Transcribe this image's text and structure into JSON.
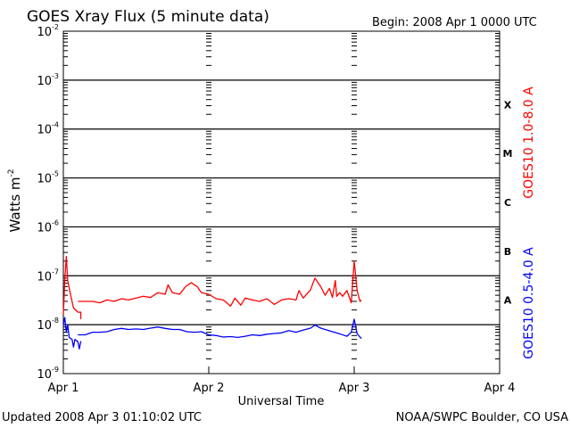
{
  "title": "GOES Xray Flux (5 minute data)",
  "begin": "Begin:  2008 Apr 1 0000 UTC",
  "ylabel": "Watts m",
  "ylabel_exp": "-2",
  "xlabel": "Universal Time",
  "updated": "Updated 2008 Apr  3 01:10:02 UTC",
  "credit": "NOAA/SWPC Boulder, CO USA",
  "chart_data": {
    "type": "line",
    "title": "GOES Xray Flux (5 minute data)",
    "xlabel": "Universal Time",
    "ylabel": "Watts m-2",
    "y_scale": "log",
    "ylim": [
      1e-09,
      0.01
    ],
    "y_ticks": [
      {
        "base": "10",
        "exp": "-2",
        "value": 0.01
      },
      {
        "base": "10",
        "exp": "-3",
        "value": 0.001
      },
      {
        "base": "10",
        "exp": "-4",
        "value": 0.0001
      },
      {
        "base": "10",
        "exp": "-5",
        "value": 1e-05
      },
      {
        "base": "10",
        "exp": "-6",
        "value": 1e-06
      },
      {
        "base": "10",
        "exp": "-7",
        "value": 1e-07
      },
      {
        "base": "10",
        "exp": "-8",
        "value": 1e-08
      },
      {
        "base": "10",
        "exp": "-9",
        "value": 1e-09
      }
    ],
    "xlim": [
      0,
      3
    ],
    "x_ticks": [
      {
        "label": "Apr 1",
        "value": 0
      },
      {
        "label": "Apr 2",
        "value": 1
      },
      {
        "label": "Apr 3",
        "value": 2
      },
      {
        "label": "Apr 4",
        "value": 3
      }
    ],
    "flare_classes": [
      {
        "label": "X",
        "value": 0.0001
      },
      {
        "label": "M",
        "value": 1e-05
      },
      {
        "label": "C",
        "value": 1e-06
      },
      {
        "label": "B",
        "value": 1e-07
      },
      {
        "label": "A",
        "value": 1e-08
      }
    ],
    "grid": true,
    "series": [
      {
        "name": "GOES10 1.0-8.0 A",
        "color": "#ff0000",
        "segments": [
          [
            [
              0.0,
              1.6e-08
            ],
            [
              0.01,
              8e-08
            ],
            [
              0.02,
              2.5e-07
            ],
            [
              0.03,
              8e-08
            ],
            [
              0.05,
              4e-08
            ],
            [
              0.07,
              2.2e-08
            ],
            [
              0.1,
              1.8e-08
            ],
            [
              0.12,
              1.8e-08
            ],
            [
              0.12,
              1.3e-08
            ]
          ],
          [
            [
              0.1,
              3e-08
            ],
            [
              0.18,
              3e-08
            ],
            [
              0.2,
              3e-08
            ],
            [
              0.25,
              2.8e-08
            ],
            [
              0.3,
              3.2e-08
            ],
            [
              0.35,
              3e-08
            ],
            [
              0.4,
              3.4e-08
            ],
            [
              0.45,
              3.2e-08
            ],
            [
              0.5,
              3.5e-08
            ],
            [
              0.55,
              3.8e-08
            ],
            [
              0.6,
              3.6e-08
            ],
            [
              0.65,
              4.5e-08
            ],
            [
              0.7,
              4.2e-08
            ],
            [
              0.72,
              6.5e-08
            ],
            [
              0.75,
              4.5e-08
            ],
            [
              0.8,
              4.2e-08
            ],
            [
              0.84,
              6e-08
            ],
            [
              0.88,
              7.2e-08
            ],
            [
              0.92,
              6e-08
            ],
            [
              0.95,
              4.5e-08
            ],
            [
              1.0,
              4.2e-08
            ],
            [
              1.05,
              3.4e-08
            ],
            [
              1.1,
              3.2e-08
            ],
            [
              1.15,
              2.4e-08
            ],
            [
              1.18,
              3.5e-08
            ],
            [
              1.22,
              2.5e-08
            ],
            [
              1.25,
              3.5e-08
            ],
            [
              1.3,
              3.2e-08
            ],
            [
              1.35,
              3e-08
            ],
            [
              1.4,
              3.4e-08
            ],
            [
              1.45,
              2.6e-08
            ],
            [
              1.5,
              3.2e-08
            ],
            [
              1.55,
              3.4e-08
            ],
            [
              1.6,
              3.2e-08
            ],
            [
              1.62,
              5e-08
            ],
            [
              1.65,
              3.5e-08
            ],
            [
              1.7,
              5.2e-08
            ],
            [
              1.73,
              9e-08
            ],
            [
              1.77,
              6e-08
            ],
            [
              1.8,
              4e-08
            ],
            [
              1.83,
              5.5e-08
            ],
            [
              1.85,
              3.6e-08
            ],
            [
              1.87,
              8e-08
            ],
            [
              1.88,
              3.8e-08
            ],
            [
              1.9,
              4.5e-08
            ],
            [
              1.92,
              3.8e-08
            ],
            [
              1.95,
              5e-08
            ],
            [
              1.98,
              2.8e-08
            ],
            [
              2.0,
              2e-07
            ],
            [
              2.02,
              5e-08
            ],
            [
              2.04,
              3e-08
            ],
            [
              2.05,
              3.2e-08
            ]
          ]
        ]
      },
      {
        "name": "GOES10 0.5-4.0 A",
        "color": "#0000ff",
        "segments": [
          [
            [
              0.0,
              1e-08
            ],
            [
              0.01,
              1.4e-08
            ],
            [
              0.02,
              7e-09
            ],
            [
              0.03,
              1e-08
            ],
            [
              0.04,
              5.5e-09
            ],
            [
              0.06,
              5e-09
            ],
            [
              0.07,
              3.5e-09
            ],
            [
              0.08,
              5e-09
            ],
            [
              0.1,
              4.5e-09
            ],
            [
              0.11,
              3.2e-09
            ],
            [
              0.12,
              4.6e-09
            ]
          ],
          [
            [
              0.1,
              6.2e-09
            ],
            [
              0.15,
              6.2e-09
            ],
            [
              0.2,
              7e-09
            ],
            [
              0.25,
              7e-09
            ],
            [
              0.3,
              7.2e-09
            ],
            [
              0.35,
              8e-09
            ],
            [
              0.4,
              8.4e-09
            ],
            [
              0.45,
              8e-09
            ],
            [
              0.5,
              8.2e-09
            ],
            [
              0.55,
              8e-09
            ],
            [
              0.6,
              8.5e-09
            ],
            [
              0.65,
              9e-09
            ],
            [
              0.7,
              8.4e-09
            ],
            [
              0.75,
              8e-09
            ],
            [
              0.8,
              8e-09
            ],
            [
              0.85,
              7.2e-09
            ],
            [
              0.9,
              7e-09
            ],
            [
              0.95,
              7.2e-09
            ],
            [
              1.0,
              6.2e-09
            ],
            [
              1.05,
              6e-09
            ],
            [
              1.1,
              5.6e-09
            ],
            [
              1.15,
              5.7e-09
            ],
            [
              1.2,
              5.5e-09
            ],
            [
              1.25,
              5.8e-09
            ],
            [
              1.3,
              6.2e-09
            ],
            [
              1.35,
              6e-09
            ],
            [
              1.4,
              6.4e-09
            ],
            [
              1.45,
              6.6e-09
            ],
            [
              1.5,
              6.8e-09
            ],
            [
              1.55,
              7.6e-09
            ],
            [
              1.6,
              7e-09
            ],
            [
              1.65,
              7.8e-09
            ],
            [
              1.7,
              8.5e-09
            ],
            [
              1.73,
              9.8e-09
            ],
            [
              1.77,
              8.5e-09
            ],
            [
              1.8,
              8e-09
            ],
            [
              1.85,
              7.2e-09
            ],
            [
              1.9,
              6.5e-09
            ],
            [
              1.95,
              5.8e-09
            ],
            [
              1.98,
              7e-09
            ],
            [
              2.0,
              1.3e-08
            ],
            [
              2.02,
              6.5e-09
            ],
            [
              2.05,
              5.2e-09
            ]
          ]
        ]
      }
    ]
  }
}
